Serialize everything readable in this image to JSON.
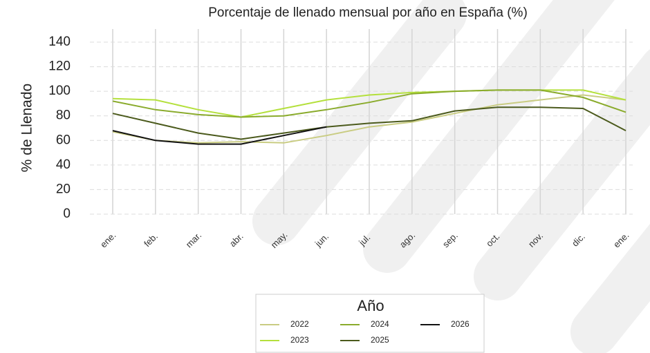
{
  "chart_data": {
    "type": "line",
    "title": "Porcentaje de llenado mensual por año en España (%)",
    "y_label": "% de Llenado",
    "legend_title": "Año",
    "legend_position": "bottom",
    "categories": [
      "ene.",
      "feb.",
      "mar.",
      "abr.",
      "may.",
      "jun.",
      "jul.",
      "ago.",
      "sep.",
      "oct.",
      "nov.",
      "dic.",
      "ene."
    ],
    "series": [
      {
        "name": "2022",
        "color": "#c9cc82",
        "values": [
          67,
          60,
          58,
          59,
          58,
          64,
          71,
          75,
          82,
          89,
          93,
          97,
          93
        ]
      },
      {
        "name": "2023",
        "color": "#b4e03c",
        "values": [
          94,
          93,
          85,
          79,
          86,
          93,
          97,
          99,
          100,
          101,
          101,
          101,
          93
        ]
      },
      {
        "name": "2024",
        "color": "#8aab2c",
        "values": [
          92,
          85,
          81,
          79,
          80,
          85,
          91,
          98,
          100,
          101,
          101,
          95,
          83
        ]
      },
      {
        "name": "2025",
        "color": "#4b5a1c",
        "values": [
          82,
          74,
          66,
          61,
          66,
          71,
          74,
          76,
          84,
          87,
          87,
          86,
          68
        ]
      },
      {
        "name": "2026",
        "color": "#111111",
        "values": [
          68,
          60,
          57,
          57,
          64,
          71,
          null,
          null,
          null,
          null,
          null,
          null,
          null
        ]
      }
    ],
    "ylim": [
      0,
      140
    ],
    "yticks": [
      0,
      20,
      40,
      60,
      80,
      100,
      120,
      140
    ],
    "grid": true
  }
}
